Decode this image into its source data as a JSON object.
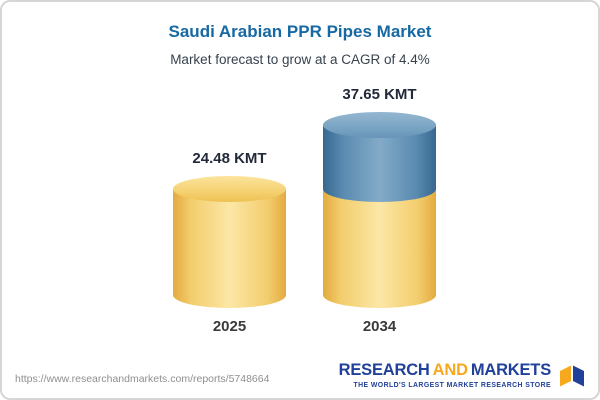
{
  "chart_data": {
    "type": "bar",
    "title": "Saudi Arabian PPR Pipes Market",
    "subtitle": "Market forecast to grow at a CAGR of 4.4%",
    "categories": [
      "2025",
      "2034"
    ],
    "values": [
      24.48,
      37.65
    ],
    "unit": "KMT",
    "labels": [
      "24.48 KMT",
      "37.65 KMT"
    ],
    "legend_position": "none",
    "grid": false,
    "colors": {
      "base_segment": "#f3cd6d",
      "growth_segment": "#5a8bb1",
      "title": "#1769a3"
    }
  },
  "footer": {
    "url": "https://www.researchandmarkets.com/reports/5748664",
    "logo": {
      "word1": "RESEARCH",
      "word2": "AND",
      "word3": "MARKETS",
      "tagline": "THE WORLD'S LARGEST MARKET RESEARCH STORE"
    }
  }
}
